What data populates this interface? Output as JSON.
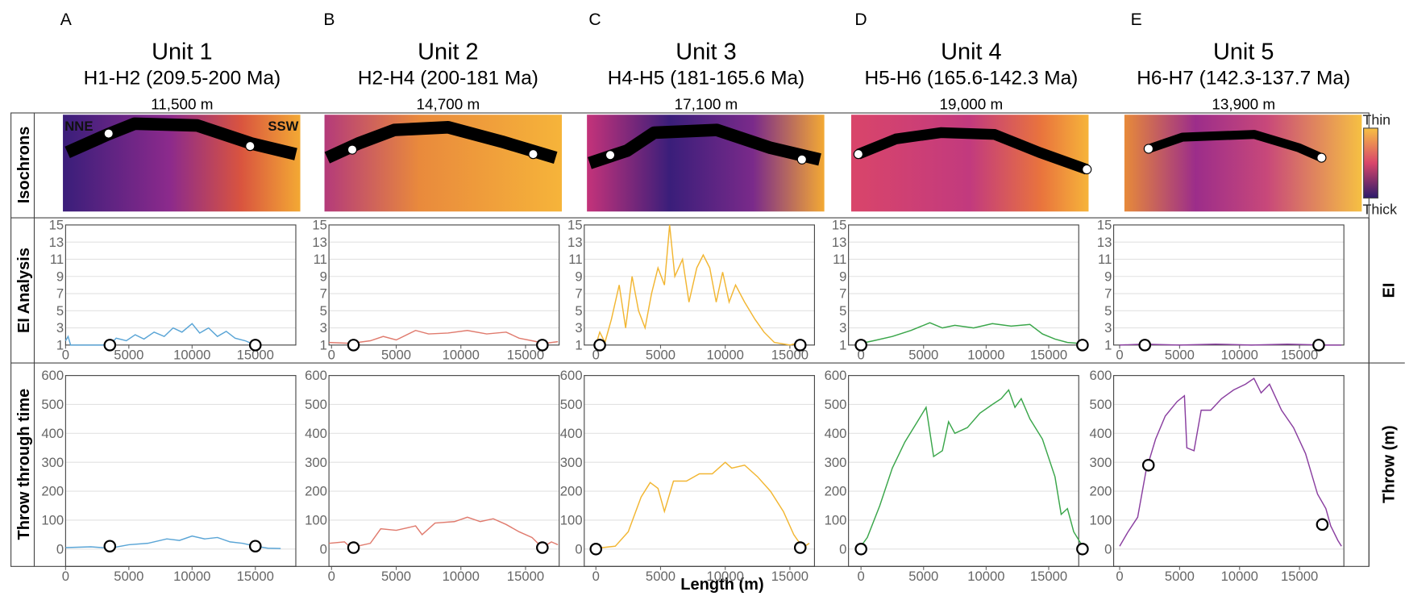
{
  "figure": {
    "row_labels": [
      "Isochrons",
      "EI Analysis",
      "Throw through time"
    ],
    "right_labels": [
      "EI",
      "Throw (m)"
    ],
    "colorbar": [
      "Thin",
      "Thick"
    ],
    "map_labels": [
      "NNE",
      "SSW"
    ],
    "xlabel": "Length (m)"
  },
  "chart_data": [
    {
      "type": "line",
      "panel": "A",
      "title": "Unit 1",
      "subtitle": "H1-H2 (209.5-200 Ma)",
      "length": "11,500 m",
      "color": "#5aa5d6",
      "x": [
        0,
        200,
        400,
        3500,
        4000,
        4800,
        5500,
        6200,
        7000,
        7800,
        8500,
        9200,
        10000,
        10600,
        11300,
        12000,
        12700,
        13400,
        14200,
        15000
      ],
      "values": [
        1.5,
        2,
        1,
        1,
        1.8,
        1.5,
        2.2,
        1.7,
        2.5,
        2,
        3,
        2.5,
        3.5,
        2.4,
        3,
        2,
        2.6,
        1.8,
        1.5,
        1
      ],
      "markers": {
        "x": [
          3500,
          15000
        ],
        "y": [
          1,
          1
        ]
      },
      "xlim": [
        0,
        18200
      ],
      "ylim": [
        1,
        15
      ],
      "xticks": [
        0,
        5000,
        10000,
        15000
      ],
      "yticks": [
        1,
        3,
        5,
        7,
        9,
        11,
        13,
        15
      ],
      "grid": true
    },
    {
      "type": "line",
      "panel": "B",
      "title": "Unit 2",
      "subtitle": "H2-H4 (200-181 Ma)",
      "length": "14,700 m",
      "color": "#e07b6e",
      "x": [
        -200,
        1500,
        3000,
        4000,
        5000,
        6500,
        7500,
        9000,
        10500,
        12000,
        13500,
        14500,
        15500,
        16500,
        17500
      ],
      "values": [
        1.3,
        1.2,
        1.5,
        2,
        1.6,
        2.7,
        2.3,
        2.4,
        2.7,
        2.3,
        2.5,
        1.8,
        1.5,
        1.2,
        1.4
      ],
      "markers": {
        "x": [
          1700,
          16300
        ],
        "y": [
          1,
          1
        ]
      },
      "xlim": [
        -200,
        17600
      ],
      "ylim": [
        1,
        15
      ],
      "xticks": [
        0,
        5000,
        10000,
        15000
      ],
      "yticks": [
        1,
        3,
        5,
        7,
        9,
        11,
        13,
        15
      ],
      "grid": true
    },
    {
      "type": "line",
      "panel": "C",
      "title": "Unit 3",
      "subtitle": "H4-H5 (181-165.6 Ma)",
      "length": "17,100 m",
      "color": "#f2b632",
      "x": [
        0,
        300,
        700,
        1200,
        1800,
        2300,
        2800,
        3300,
        3800,
        4300,
        4800,
        5300,
        5700,
        6100,
        6700,
        7200,
        7800,
        8300,
        8800,
        9300,
        9800,
        10300,
        10800,
        11500,
        12300,
        13000,
        13800,
        15000,
        15800
      ],
      "values": [
        1,
        2.5,
        1.3,
        4,
        8,
        3,
        9,
        5,
        3,
        7,
        10,
        8,
        15,
        9,
        11,
        6,
        10,
        11.5,
        10,
        6,
        9.5,
        6,
        8,
        6,
        4,
        2.5,
        1.3,
        1,
        1.3
      ],
      "markers": {
        "x": [
          300,
          15800
        ],
        "y": [
          1,
          1
        ]
      },
      "xlim": [
        -900,
        16900
      ],
      "ylim": [
        1,
        15
      ],
      "xticks": [
        0,
        5000,
        10000,
        15000
      ],
      "yticks": [
        1,
        3,
        5,
        7,
        9,
        11,
        13,
        15
      ],
      "grid": true
    },
    {
      "type": "line",
      "panel": "D",
      "title": "Unit 4",
      "subtitle": "H5-H6 (165.6-142.3 Ma)",
      "length": "19,000 m",
      "color": "#3aa64a",
      "x": [
        0,
        1000,
        2500,
        4000,
        5500,
        6500,
        7500,
        9000,
        10500,
        12000,
        13500,
        14500,
        15500,
        16500,
        17400
      ],
      "values": [
        1.2,
        1.5,
        2,
        2.7,
        3.6,
        3,
        3.3,
        3,
        3.5,
        3.2,
        3.4,
        2.3,
        1.7,
        1.3,
        1.2
      ],
      "markers": {
        "x": [
          0,
          17700
        ],
        "y": [
          1,
          1
        ]
      },
      "xlim": [
        -1000,
        17400
      ],
      "ylim": [
        1,
        15
      ],
      "xticks": [
        0,
        5000,
        10000,
        15000
      ],
      "yticks": [
        1,
        3,
        5,
        7,
        9,
        11,
        13,
        15
      ],
      "grid": true
    },
    {
      "type": "line",
      "panel": "E",
      "title": "Unit 5",
      "subtitle": "H6-H7 (142.3-137.7 Ma)",
      "length": "13,900 m",
      "color": "#8a3fa0",
      "x": [
        0,
        2000,
        5000,
        8000,
        11000,
        14000,
        17000,
        18500
      ],
      "values": [
        1,
        1.1,
        1,
        1.1,
        1,
        1.1,
        1,
        1
      ],
      "markers": {
        "x": [
          2100,
          16600
        ],
        "y": [
          1,
          1
        ]
      },
      "xlim": [
        -500,
        18700
      ],
      "ylim": [
        1,
        15
      ],
      "xticks": [
        0,
        5000,
        10000,
        15000
      ],
      "yticks": [
        1,
        3,
        5,
        7,
        9,
        11,
        13,
        15
      ],
      "grid": true
    },
    {
      "type": "line",
      "color": "#5aa5d6",
      "x": [
        0,
        2000,
        3500,
        5000,
        6500,
        8000,
        9000,
        10000,
        11000,
        12000,
        13000,
        14000,
        15000,
        16000,
        17000
      ],
      "values": [
        5,
        8,
        3,
        15,
        20,
        35,
        30,
        45,
        35,
        40,
        25,
        20,
        10,
        3,
        2
      ],
      "markers": {
        "x": [
          3500,
          15000
        ],
        "y": [
          10,
          10
        ]
      },
      "xlim": [
        0,
        18200
      ],
      "ylim": [
        -60,
        600
      ],
      "xticks": [
        0,
        5000,
        10000,
        15000
      ],
      "yticks": [
        0,
        100,
        200,
        300,
        400,
        500,
        600
      ],
      "grid": true
    },
    {
      "type": "line",
      "color": "#e07b6e",
      "x": [
        -200,
        1000,
        1500,
        3000,
        3800,
        5000,
        6500,
        7000,
        8000,
        9500,
        10500,
        11500,
        12500,
        13500,
        14500,
        15500,
        16300,
        17000,
        17500
      ],
      "values": [
        20,
        25,
        5,
        20,
        70,
        65,
        80,
        50,
        90,
        95,
        110,
        95,
        105,
        85,
        60,
        40,
        5,
        25,
        15
      ],
      "markers": {
        "x": [
          1700,
          16300
        ],
        "y": [
          5,
          5
        ]
      },
      "xlim": [
        -200,
        17600
      ],
      "ylim": [
        -60,
        600
      ],
      "xticks": [
        0,
        5000,
        10000,
        15000
      ],
      "yticks": [
        0,
        100,
        200,
        300,
        400,
        500,
        600
      ],
      "grid": true
    },
    {
      "type": "line",
      "color": "#f2b632",
      "x": [
        0,
        500,
        1500,
        2500,
        3500,
        4200,
        4800,
        5300,
        6000,
        7000,
        8000,
        9000,
        10000,
        10500,
        11500,
        12500,
        13500,
        14500,
        15300,
        16000,
        16500
      ],
      "values": [
        0,
        5,
        10,
        60,
        180,
        230,
        210,
        130,
        235,
        235,
        260,
        260,
        300,
        280,
        290,
        250,
        200,
        130,
        50,
        5,
        20
      ],
      "markers": {
        "x": [
          0,
          15800
        ],
        "y": [
          0,
          5
        ]
      },
      "xlim": [
        -900,
        16900
      ],
      "ylim": [
        -60,
        600
      ],
      "xticks": [
        0,
        5000,
        10000,
        15000
      ],
      "yticks": [
        0,
        100,
        200,
        300,
        400,
        500,
        600
      ],
      "grid": true
    },
    {
      "type": "line",
      "color": "#3aa64a",
      "x": [
        0,
        500,
        1500,
        2500,
        3500,
        4500,
        5200,
        5800,
        6500,
        7000,
        7500,
        8500,
        9500,
        10500,
        11200,
        11800,
        12300,
        12800,
        13500,
        14500,
        15500,
        16000,
        16500,
        17000,
        17700
      ],
      "values": [
        10,
        40,
        150,
        280,
        370,
        440,
        490,
        320,
        340,
        440,
        400,
        420,
        470,
        500,
        520,
        550,
        490,
        520,
        450,
        380,
        250,
        120,
        140,
        60,
        10
      ],
      "markers": {
        "x": [
          0,
          17700
        ],
        "y": [
          0,
          0
        ]
      },
      "xlim": [
        -1000,
        17400
      ],
      "ylim": [
        -60,
        600
      ],
      "xticks": [
        0,
        5000,
        10000,
        15000
      ],
      "yticks": [
        0,
        100,
        200,
        300,
        400,
        500,
        600
      ],
      "grid": true
    },
    {
      "type": "line",
      "color": "#8a3fa0",
      "x": [
        0,
        700,
        1500,
        2200,
        3000,
        3800,
        4800,
        5400,
        5600,
        6200,
        6800,
        7600,
        8500,
        9500,
        10500,
        11200,
        11800,
        12500,
        13500,
        14500,
        15500,
        16500,
        17200,
        17600,
        18200,
        18500
      ],
      "values": [
        10,
        60,
        110,
        270,
        380,
        460,
        510,
        530,
        350,
        340,
        480,
        480,
        520,
        550,
        570,
        590,
        540,
        570,
        480,
        420,
        330,
        190,
        140,
        80,
        30,
        10
      ],
      "markers": {
        "x": [
          2400,
          16900
        ],
        "y": [
          290,
          85
        ]
      },
      "xlim": [
        -500,
        18700
      ],
      "ylim": [
        -60,
        600
      ],
      "xticks": [
        0,
        5000,
        10000,
        15000
      ],
      "yticks": [
        0,
        100,
        200,
        300,
        400,
        500,
        600
      ],
      "grid": true
    }
  ]
}
